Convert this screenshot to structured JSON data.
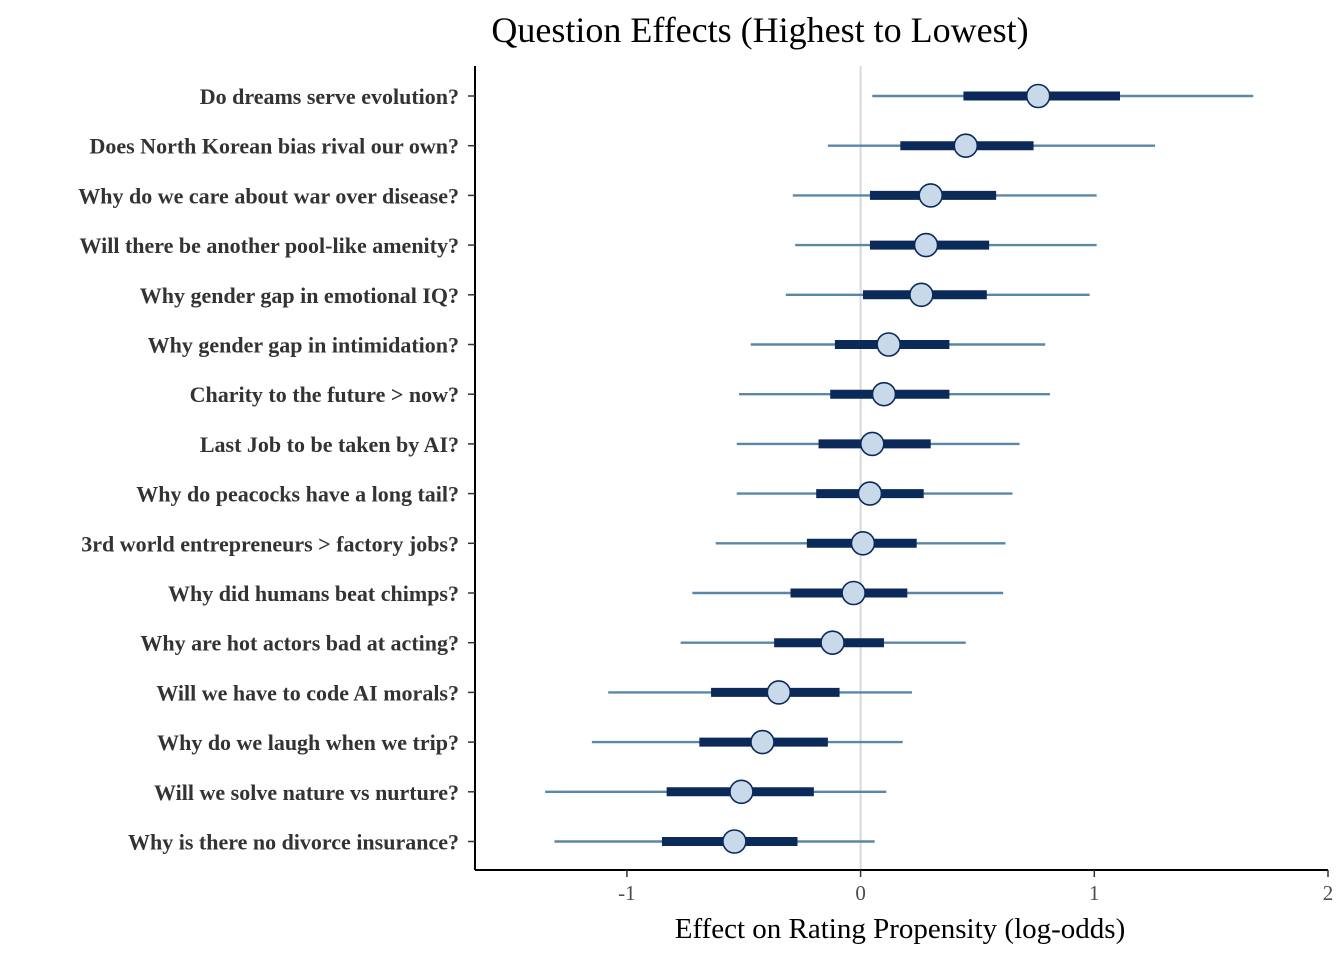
{
  "chart_data": {
    "type": "forest",
    "title": "Question Effects (Highest to Lowest)",
    "xlabel": "Effect on Rating Propensity (log-odds)",
    "ylabel": "",
    "xlim": [
      -1.65,
      2.0
    ],
    "xticks": [
      -1,
      0,
      1,
      2
    ],
    "reference_line": 0,
    "grid": false,
    "colors": {
      "outer_interval": "#5a87a8",
      "inner_interval": "#0b2a5a",
      "point_fill": "#c8daea",
      "point_stroke": "#0b2a5a",
      "reference_line": "#d9d9d9"
    },
    "series": [
      {
        "label": "Do dreams serve evolution?",
        "estimate": 0.76,
        "inner": [
          0.44,
          1.11
        ],
        "outer": [
          0.05,
          1.68
        ]
      },
      {
        "label": "Does North Korean bias rival our own?",
        "estimate": 0.45,
        "inner": [
          0.17,
          0.74
        ],
        "outer": [
          -0.14,
          1.26
        ]
      },
      {
        "label": "Why do we care about war over disease?",
        "estimate": 0.3,
        "inner": [
          0.04,
          0.58
        ],
        "outer": [
          -0.29,
          1.01
        ]
      },
      {
        "label": "Will there be another pool-like amenity?",
        "estimate": 0.28,
        "inner": [
          0.04,
          0.55
        ],
        "outer": [
          -0.28,
          1.01
        ]
      },
      {
        "label": "Why gender gap in emotional IQ?",
        "estimate": 0.26,
        "inner": [
          0.01,
          0.54
        ],
        "outer": [
          -0.32,
          0.98
        ]
      },
      {
        "label": "Why gender gap in intimidation?",
        "estimate": 0.12,
        "inner": [
          -0.11,
          0.38
        ],
        "outer": [
          -0.47,
          0.79
        ]
      },
      {
        "label": "Charity to the future > now?",
        "estimate": 0.1,
        "inner": [
          -0.13,
          0.38
        ],
        "outer": [
          -0.52,
          0.81
        ]
      },
      {
        "label": "Last Job to be taken by AI?",
        "estimate": 0.05,
        "inner": [
          -0.18,
          0.3
        ],
        "outer": [
          -0.53,
          0.68
        ]
      },
      {
        "label": "Why do peacocks have a long tail?",
        "estimate": 0.04,
        "inner": [
          -0.19,
          0.27
        ],
        "outer": [
          -0.53,
          0.65
        ]
      },
      {
        "label": "3rd world entrepreneurs > factory jobs?",
        "estimate": 0.01,
        "inner": [
          -0.23,
          0.24
        ],
        "outer": [
          -0.62,
          0.62
        ]
      },
      {
        "label": "Why did humans beat chimps?",
        "estimate": -0.03,
        "inner": [
          -0.3,
          0.2
        ],
        "outer": [
          -0.72,
          0.61
        ]
      },
      {
        "label": "Why are hot actors bad at acting?",
        "estimate": -0.12,
        "inner": [
          -0.37,
          0.1
        ],
        "outer": [
          -0.77,
          0.45
        ]
      },
      {
        "label": "Will we have to code AI morals?",
        "estimate": -0.35,
        "inner": [
          -0.64,
          -0.09
        ],
        "outer": [
          -1.08,
          0.22
        ]
      },
      {
        "label": "Why do we laugh when we trip?",
        "estimate": -0.42,
        "inner": [
          -0.69,
          -0.14
        ],
        "outer": [
          -1.15,
          0.18
        ]
      },
      {
        "label": "Will we solve nature vs nurture?",
        "estimate": -0.51,
        "inner": [
          -0.83,
          -0.2
        ],
        "outer": [
          -1.35,
          0.11
        ]
      },
      {
        "label": "Why is there no divorce insurance?",
        "estimate": -0.54,
        "inner": [
          -0.85,
          -0.27
        ],
        "outer": [
          -1.31,
          0.06
        ]
      }
    ]
  }
}
